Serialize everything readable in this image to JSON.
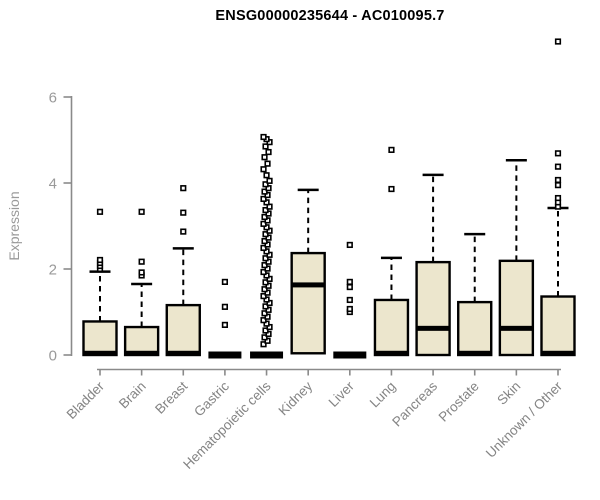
{
  "chart_data": {
    "type": "boxplot",
    "title": "ENSG00000235644 - AC010095.7",
    "ylabel": "Expression",
    "xlabel": "",
    "ylim": [
      0,
      6
    ],
    "yticks": [
      0,
      2,
      4,
      6
    ],
    "grid": false,
    "legend": false,
    "colors": {
      "box_fill": "#ece6cd",
      "box_border": "#000000",
      "median": "#000000",
      "whisker": "#000000",
      "outlier_stroke": "#000000",
      "outlier_fill": "#ffffff",
      "axis": "#8a8a8a",
      "y_tick_label": "#9a9a9a",
      "x_tick_label": "#848484",
      "title": "#000000"
    },
    "categories": [
      "Bladder",
      "Brain",
      "Breast",
      "Gastric",
      "Hematopoietic cells",
      "Kidney",
      "Liver",
      "Lung",
      "Pancreas",
      "Prostate",
      "Skin",
      "Unknown / Other"
    ],
    "series": [
      {
        "label": "Bladder",
        "q1": 0,
        "median": 0.04,
        "q3": 0.78,
        "whisker_high": 1.94,
        "outliers": [
          2.0,
          2.07,
          2.14,
          2.21,
          3.33
        ]
      },
      {
        "label": "Brain",
        "q1": 0,
        "median": 0.04,
        "q3": 0.65,
        "whisker_high": 1.65,
        "outliers": [
          1.85,
          1.92,
          2.17,
          3.33
        ]
      },
      {
        "label": "Breast",
        "q1": 0,
        "median": 0.04,
        "q3": 1.16,
        "whisker_high": 2.48,
        "outliers": [
          2.87,
          3.31,
          3.88
        ]
      },
      {
        "label": "Gastric",
        "q1": 0,
        "median": 0.0,
        "q3": 0.0,
        "whisker_high": null,
        "outliers": [
          0.7,
          1.12,
          1.7
        ]
      },
      {
        "label": "Hematopoietic cells",
        "q1": 0,
        "median": 0.0,
        "q3": 0.0,
        "whisker_high": null,
        "outliers": [
          0.25,
          0.33,
          0.41,
          0.49,
          0.57,
          0.65,
          0.73,
          0.81,
          0.89,
          0.97,
          1.05,
          1.13,
          1.21,
          1.29,
          1.37,
          1.45,
          1.53,
          1.61,
          1.69,
          1.77,
          1.85,
          1.93,
          2.01,
          2.09,
          2.17,
          2.25,
          2.33,
          2.41,
          2.49,
          2.57,
          2.65,
          2.73,
          2.81,
          2.89,
          2.97,
          3.05,
          3.13,
          3.21,
          3.29,
          3.37,
          3.45,
          3.55,
          3.63,
          3.72,
          3.8,
          3.88,
          3.97,
          4.05,
          4.18,
          4.32,
          4.45,
          4.6,
          4.72,
          4.85,
          4.95,
          5.02,
          5.07
        ]
      },
      {
        "label": "Kidney",
        "q1": 0.04,
        "median": 1.63,
        "q3": 2.37,
        "whisker_high": 3.84,
        "outliers": []
      },
      {
        "label": "Liver",
        "q1": 0,
        "median": 0.0,
        "q3": 0.0,
        "whisker_high": null,
        "outliers": [
          1.0,
          1.07,
          1.28,
          1.58,
          1.7,
          2.56
        ]
      },
      {
        "label": "Lung",
        "q1": 0,
        "median": 0.04,
        "q3": 1.28,
        "whisker_high": 2.26,
        "outliers": [
          3.86,
          4.77
        ]
      },
      {
        "label": "Pancreas",
        "q1": 0,
        "median": 0.62,
        "q3": 2.16,
        "whisker_high": 4.19,
        "outliers": []
      },
      {
        "label": "Prostate",
        "q1": 0,
        "median": 0.04,
        "q3": 1.23,
        "whisker_high": 2.81,
        "outliers": []
      },
      {
        "label": "Skin",
        "q1": 0,
        "median": 0.62,
        "q3": 2.19,
        "whisker_high": 4.53,
        "outliers": []
      },
      {
        "label": "Unknown / Other",
        "q1": 0,
        "median": 0.04,
        "q3": 1.36,
        "whisker_high": 3.42,
        "outliers": [
          3.45,
          3.55,
          3.65,
          3.95,
          4.07,
          4.38,
          4.69,
          7.29
        ]
      }
    ]
  }
}
